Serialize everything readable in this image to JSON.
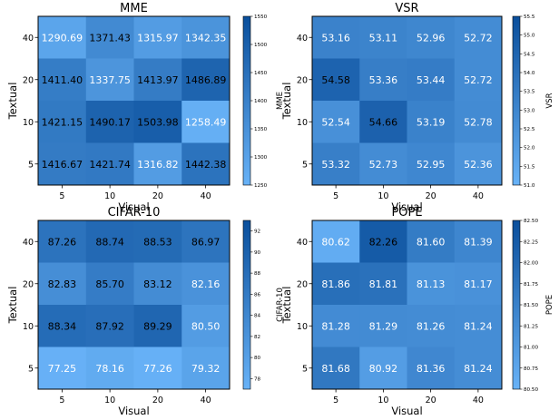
{
  "chart_data": [
    {
      "type": "heatmap",
      "title": "MME",
      "xlabel": "Visual",
      "ylabel": "Textual",
      "colorbar_label": "MME",
      "x_categories": [
        "5",
        "10",
        "20",
        "40"
      ],
      "y_categories": [
        "40",
        "20",
        "10",
        "5"
      ],
      "cells": [
        [
          "1290.69",
          "1371.43",
          "1315.97",
          "1342.35"
        ],
        [
          "1411.40",
          "1337.75",
          "1413.97",
          "1486.89"
        ],
        [
          "1421.15",
          "1490.17",
          "1503.98",
          "1258.49"
        ],
        [
          "1416.67",
          "1421.74",
          "1316.82",
          "1442.38"
        ]
      ],
      "vmin": 1250,
      "vmax": 1550,
      "colorbar_ticks": [
        "1250",
        "1300",
        "1350",
        "1400",
        "1450",
        "1500",
        "1550"
      ],
      "text_dark_threshold": 0.35
    },
    {
      "type": "heatmap",
      "title": "VSR",
      "xlabel": "Visual",
      "ylabel": "Textual",
      "colorbar_label": "VSR",
      "x_categories": [
        "5",
        "10",
        "20",
        "40"
      ],
      "y_categories": [
        "40",
        "20",
        "10",
        "5"
      ],
      "cells": [
        [
          "53.16",
          "53.11",
          "52.96",
          "52.72"
        ],
        [
          "54.58",
          "53.36",
          "53.44",
          "52.72"
        ],
        [
          "52.54",
          "54.66",
          "53.19",
          "52.78"
        ],
        [
          "53.32",
          "52.73",
          "52.95",
          "52.36"
        ]
      ],
      "vmin": 51.0,
      "vmax": 55.5,
      "colorbar_ticks": [
        "51.0",
        "51.5",
        "52.0",
        "52.5",
        "53.0",
        "53.5",
        "54.0",
        "54.5",
        "55.0",
        "55.5"
      ],
      "text_dark_threshold": 0.7
    },
    {
      "type": "heatmap",
      "title": "CIFAR-10",
      "xlabel": "Visual",
      "ylabel": "Textual",
      "colorbar_label": "CIFAR-10",
      "x_categories": [
        "5",
        "10",
        "20",
        "40"
      ],
      "y_categories": [
        "40",
        "20",
        "10",
        "5"
      ],
      "cells": [
        [
          "87.26",
          "88.74",
          "88.53",
          "86.97"
        ],
        [
          "82.83",
          "85.70",
          "83.12",
          "82.16"
        ],
        [
          "88.34",
          "87.92",
          "89.29",
          "80.50"
        ],
        [
          "77.25",
          "78.16",
          "77.26",
          "79.32"
        ]
      ],
      "vmin": 77,
      "vmax": 93,
      "colorbar_ticks": [
        "78",
        "80",
        "82",
        "84",
        "86",
        "88",
        "90",
        "92"
      ],
      "text_dark_threshold": 0.35
    },
    {
      "type": "heatmap",
      "title": "POPE",
      "xlabel": "Visual",
      "ylabel": "Textual",
      "colorbar_label": "POPE",
      "x_categories": [
        "5",
        "10",
        "20",
        "40"
      ],
      "y_categories": [
        "40",
        "20",
        "10",
        "5"
      ],
      "cells": [
        [
          "80.62",
          "82.26",
          "81.60",
          "81.39"
        ],
        [
          "81.86",
          "81.81",
          "81.13",
          "81.17"
        ],
        [
          "81.28",
          "81.29",
          "81.26",
          "81.24"
        ],
        [
          "81.68",
          "80.92",
          "81.36",
          "81.24"
        ]
      ],
      "vmin": 80.5,
      "vmax": 82.5,
      "colorbar_ticks": [
        "80.50",
        "80.75",
        "81.00",
        "81.25",
        "81.50",
        "81.75",
        "82.00",
        "82.25",
        "82.50"
      ],
      "text_dark_threshold": 0.7
    }
  ],
  "colors": {
    "low": "#68b2f7",
    "high": "#0a4f9c",
    "frame": "#000000",
    "text_light": "#ffffff",
    "text_dark": "#000000"
  }
}
